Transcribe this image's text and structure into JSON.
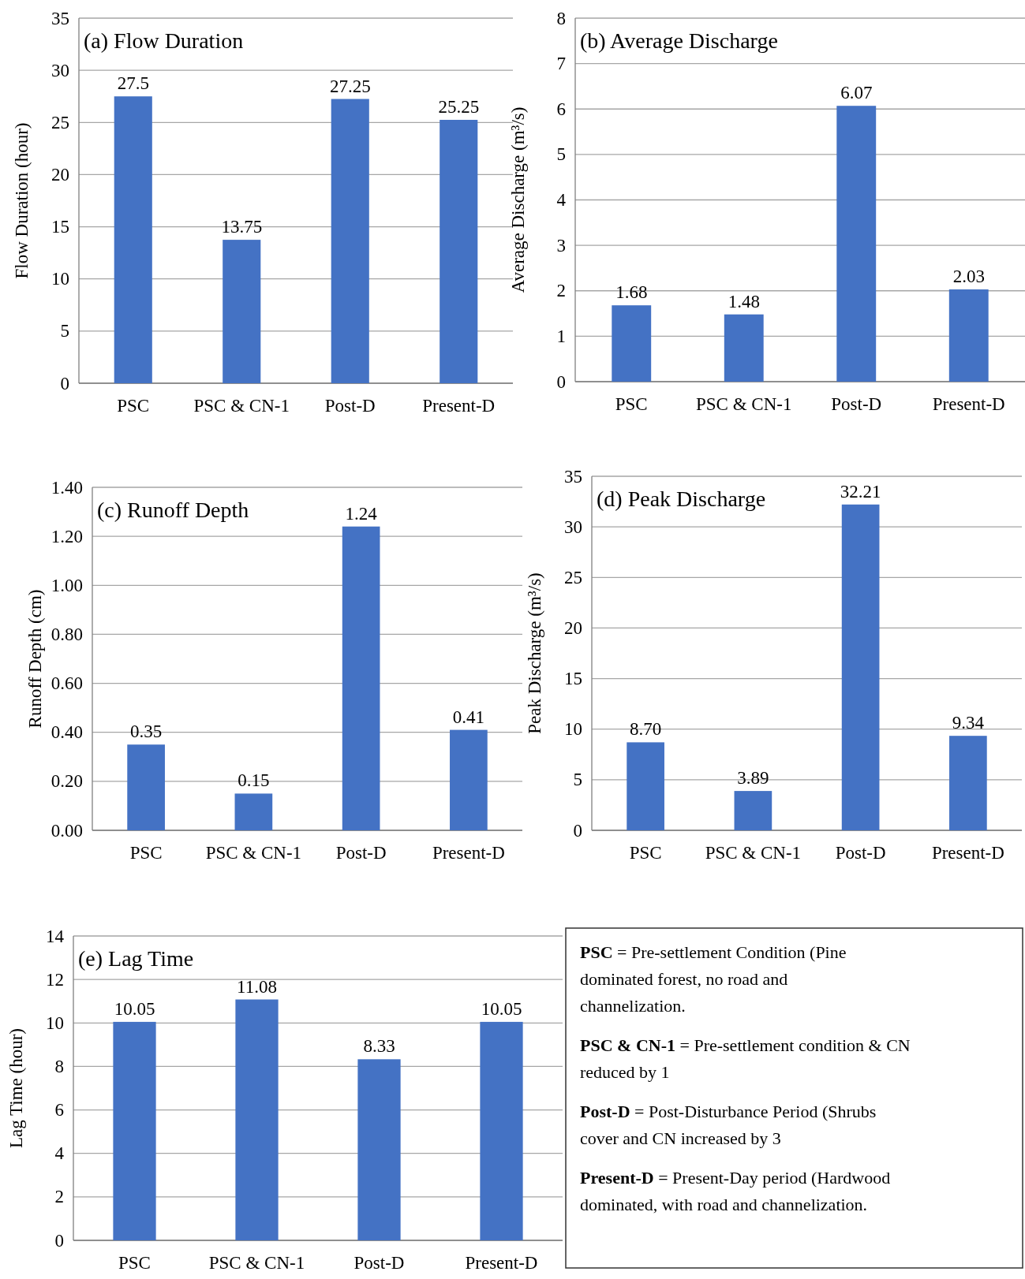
{
  "chart_data": [
    {
      "type": "bar",
      "title": "(a) Flow Duration",
      "ylabel": "Flow Duration (hour)",
      "categories": [
        "PSC",
        "PSC & CN-1",
        "Post-D",
        "Present-D"
      ],
      "values": [
        27.5,
        13.75,
        27.25,
        25.25
      ],
      "color": "#4472c4",
      "ylim": [
        0,
        35
      ],
      "yticks": [
        0,
        5,
        10,
        15,
        20,
        25,
        30,
        35
      ],
      "grid": "y",
      "data_labels": true
    },
    {
      "type": "bar",
      "title": "(b) Average Discharge",
      "ylabel": "Average Discharge (m³/s)",
      "categories": [
        "PSC",
        "PSC & CN-1",
        "Post-D",
        "Present-D"
      ],
      "values": [
        1.68,
        1.48,
        6.07,
        2.03
      ],
      "color": "#4472c4",
      "ylim": [
        0,
        8
      ],
      "yticks": [
        0,
        1,
        2,
        3,
        4,
        5,
        6,
        7,
        8
      ],
      "grid": "y",
      "data_labels": true
    },
    {
      "type": "bar",
      "title": "(c) Runoff Depth",
      "ylabel": "Runoff Depth (cm)",
      "categories": [
        "PSC",
        "PSC & CN-1",
        "Post-D",
        "Present-D"
      ],
      "values": [
        0.35,
        0.15,
        1.24,
        0.41
      ],
      "color": "#4472c4",
      "ylim": [
        0,
        1.4
      ],
      "yticks": [
        {
          "value": 0,
          "label": "0.00"
        },
        {
          "value": 0.2,
          "label": "0.20"
        },
        {
          "value": 0.4,
          "label": "0.40"
        },
        {
          "value": 0.6,
          "label": "0.60"
        },
        {
          "value": 0.8,
          "label": "0.80"
        },
        {
          "value": 1,
          "label": "1.00"
        },
        {
          "value": 1.2,
          "label": "1.20"
        },
        {
          "value": 1.4,
          "label": "1.40"
        }
      ],
      "grid": "y",
      "data_labels": true
    },
    {
      "type": "bar",
      "title": "(d) Peak Discharge",
      "ylabel": "Peak Discharge (m³/s)",
      "categories": [
        "PSC",
        "PSC & CN-1",
        "Post-D",
        "Present-D"
      ],
      "values": [
        8.7,
        3.89,
        32.21,
        9.34
      ],
      "value_labels": [
        "8.70",
        "3.89",
        "32.21",
        "9.34"
      ],
      "color": "#4472c4",
      "ylim": [
        0,
        35
      ],
      "yticks": [
        0,
        5,
        10,
        15,
        20,
        25,
        30,
        35
      ],
      "grid": "y"
    },
    {
      "type": "bar",
      "title": "(e) Lag Time",
      "ylabel": "Lag Time (hour)",
      "categories": [
        "PSC",
        "PSC & CN-1",
        "Post-D",
        "Present-D"
      ],
      "values": [
        10.05,
        11.08,
        8.33,
        10.05
      ],
      "color": "#4472c4",
      "ylim": [
        0,
        14
      ],
      "yticks": [
        0,
        2,
        4,
        6,
        8,
        10,
        12,
        14
      ],
      "grid": "y",
      "data_labels": true
    },
    {
      "type": "other",
      "annotations": [
        "PSC = Pre-settlement Condition (Pine dominated forest, no road and channelization.",
        "PSC & CN-1 = Pre-settlement condition & CN reduced by 1",
        "Post-D = Post-Disturbance Period (Shrubs cover and CN increased by 3",
        "Present-D = Present-Day period (Hardwood dominated, with road and channelization."
      ]
    }
  ]
}
